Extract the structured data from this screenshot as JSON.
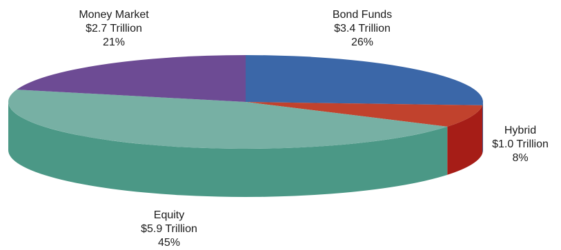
{
  "chart_data": {
    "type": "pie",
    "style": "3d",
    "title": "",
    "slices": [
      {
        "name": "Bond Funds",
        "amount": "$3.4 Trillion",
        "value": 3.4,
        "percent": "26%",
        "pct": 26,
        "color": "#3b67a8",
        "side": "#2c4f86"
      },
      {
        "name": "Hybrid",
        "amount": "$1.0 Trillion",
        "value": 1.0,
        "percent": "8%",
        "pct": 8,
        "color": "#c1422d",
        "side": "#a61d17"
      },
      {
        "name": "Equity",
        "amount": "$5.9 Trillion",
        "value": 5.9,
        "percent": "45%",
        "pct": 45,
        "color": "#77b0a4",
        "side": "#4b9886"
      },
      {
        "name": "Money Market",
        "amount": "$2.7 Trillion",
        "value": 2.7,
        "percent": "21%",
        "pct": 21,
        "color": "#6d4b94",
        "side": "#553874"
      }
    ]
  }
}
